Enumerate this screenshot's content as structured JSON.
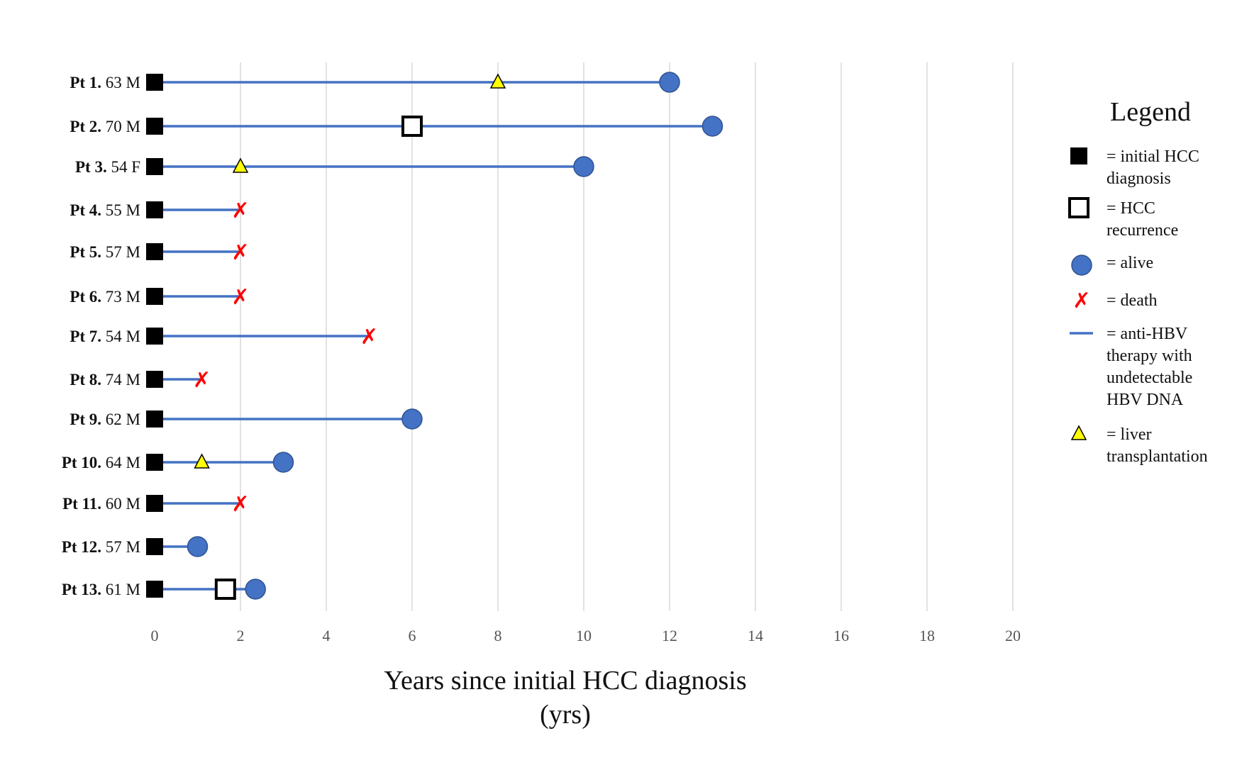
{
  "chart_data": {
    "type": "timeline",
    "xlabel_lines": [
      "Years since initial HCC diagnosis",
      "(yrs)"
    ],
    "xlim": [
      0,
      20
    ],
    "xticks": [
      0,
      2,
      4,
      6,
      8,
      10,
      12,
      14,
      16,
      18,
      20
    ],
    "grid": "vertical",
    "legend": {
      "title": "Legend",
      "placement": "right",
      "items": [
        {
          "marker": "filled-square",
          "lines": [
            "= initial HCC",
            "diagnosis"
          ]
        },
        {
          "marker": "open-square",
          "lines": [
            "= HCC",
            "recurrence"
          ]
        },
        {
          "marker": "circle",
          "lines": [
            "= alive"
          ]
        },
        {
          "marker": "x",
          "lines": [
            "= death"
          ]
        },
        {
          "marker": "line",
          "lines": [
            "= anti-HBV",
            "therapy with",
            "undetectable",
            "HBV DNA"
          ]
        },
        {
          "marker": "triangle",
          "lines": [
            "= liver",
            "transplantation"
          ]
        }
      ]
    },
    "patients": [
      {
        "id": "Pt 1.",
        "info": "63 M",
        "end": 12,
        "outcome": "alive",
        "transplant": 8
      },
      {
        "id": "Pt 2.",
        "info": "70 M",
        "end": 13,
        "outcome": "alive",
        "recurrence": 6
      },
      {
        "id": "Pt 3.",
        "info": "54 F",
        "end": 10,
        "outcome": "alive",
        "transplant": 2
      },
      {
        "id": "Pt 4.",
        "info": "55 M",
        "end": 2,
        "outcome": "death"
      },
      {
        "id": "Pt 5.",
        "info": "57 M",
        "end": 2,
        "outcome": "death"
      },
      {
        "id": "Pt 6.",
        "info": "73 M",
        "end": 2,
        "outcome": "death"
      },
      {
        "id": "Pt 7.",
        "info": "54 M",
        "end": 5,
        "outcome": "death"
      },
      {
        "id": "Pt 8.",
        "info": "74 M",
        "end": 1.1,
        "outcome": "death"
      },
      {
        "id": "Pt 9.",
        "info": "62 M",
        "end": 6,
        "outcome": "alive"
      },
      {
        "id": "Pt 10.",
        "info": "64 M",
        "end": 3,
        "outcome": "alive",
        "transplant": 1.1
      },
      {
        "id": "Pt 11.",
        "info": "60 M",
        "end": 2,
        "outcome": "death"
      },
      {
        "id": "Pt 12.",
        "info": "57 M",
        "end": 1,
        "outcome": "alive"
      },
      {
        "id": "Pt 13.",
        "info": "61 M",
        "end": 2.35,
        "outcome": "alive",
        "recurrence": 1.65
      }
    ],
    "colors": {
      "line": "#4472c4",
      "alive": "#4472c4",
      "death": "#ff0000",
      "transplant": "#ffff00",
      "grid": "#d9d9d9",
      "square": "#000000"
    }
  }
}
